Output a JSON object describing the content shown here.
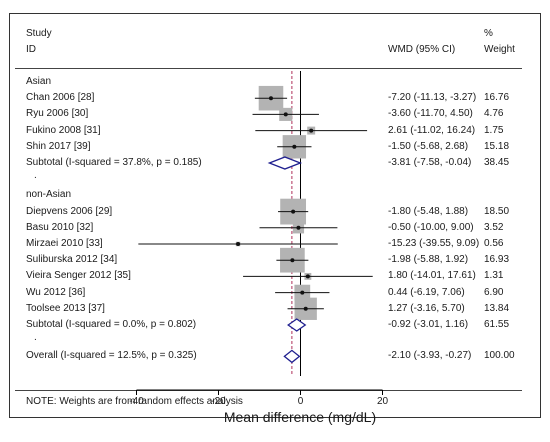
{
  "header": {
    "study": "Study",
    "id": "ID",
    "effect": "WMD (95% CI)",
    "pct": "%",
    "weight": "Weight"
  },
  "footnote": "NOTE: Weights are from random effects analysis",
  "chart_data": {
    "type": "forest",
    "xlabel": "Mean difference (mg/dL)",
    "xlim": [
      -50,
      25
    ],
    "xticks": [
      -40,
      -20,
      0,
      20
    ],
    "tick_labels": [
      "-40",
      "-20",
      "0",
      "20"
    ],
    "reference_line": 0,
    "overall_line": -2.1,
    "groups": [
      {
        "name": "Asian",
        "studies": [
          {
            "label": "Chan 2006 [28]",
            "est": -7.2,
            "lo": -11.13,
            "hi": -3.27,
            "ci_text": "-7.20 (-11.13, -3.27)",
            "weight": 16.76,
            "weight_text": "16.76"
          },
          {
            "label": "Ryu 2006 [30]",
            "est": -3.6,
            "lo": -11.7,
            "hi": 4.5,
            "ci_text": "-3.60 (-11.70, 4.50)",
            "weight": 4.76,
            "weight_text": "4.76"
          },
          {
            "label": "Fukino 2008 [31]",
            "est": 2.61,
            "lo": -11.02,
            "hi": 16.24,
            "ci_text": "2.61 (-11.02, 16.24)",
            "weight": 1.75,
            "weight_text": "1.75"
          },
          {
            "label": "Shin 2017 [39]",
            "est": -1.5,
            "lo": -5.68,
            "hi": 2.68,
            "ci_text": "-1.50 (-5.68, 2.68)",
            "weight": 15.18,
            "weight_text": "15.18"
          }
        ],
        "subtotal": {
          "label": "Subtotal  (I-squared = 37.8%, p = 0.185)",
          "est": -3.81,
          "lo": -7.58,
          "hi": -0.04,
          "ci_text": "-3.81 (-7.58, -0.04)",
          "weight_text": "38.45"
        }
      },
      {
        "name": "non-Asian",
        "studies": [
          {
            "label": "Diepvens 2006 [29]",
            "est": -1.8,
            "lo": -5.48,
            "hi": 1.88,
            "ci_text": "-1.80 (-5.48, 1.88)",
            "weight": 18.5,
            "weight_text": "18.50"
          },
          {
            "label": "Basu 2010 [32]",
            "est": -0.5,
            "lo": -10.0,
            "hi": 9.0,
            "ci_text": "-0.50 (-10.00, 9.00)",
            "weight": 3.52,
            "weight_text": "3.52"
          },
          {
            "label": "Mirzaei 2010 [33]",
            "est": -15.23,
            "lo": -39.55,
            "hi": 9.09,
            "ci_text": "-15.23 (-39.55, 9.09)",
            "weight": 0.56,
            "weight_text": "0.56"
          },
          {
            "label": "Suliburska 2012 [34]",
            "est": -1.98,
            "lo": -5.88,
            "hi": 1.92,
            "ci_text": "-1.98 (-5.88, 1.92)",
            "weight": 16.93,
            "weight_text": "16.93"
          },
          {
            "label": "Vieira Senger 2012 [35]",
            "est": 1.8,
            "lo": -14.01,
            "hi": 17.61,
            "ci_text": "1.80 (-14.01, 17.61)",
            "weight": 1.31,
            "weight_text": "1.31"
          },
          {
            "label": "Wu 2012 [36]",
            "est": 0.44,
            "lo": -6.19,
            "hi": 7.06,
            "ci_text": "0.44 (-6.19, 7.06)",
            "weight": 6.9,
            "weight_text": "6.90"
          },
          {
            "label": "Toolsee 2013 [37]",
            "est": 1.27,
            "lo": -3.16,
            "hi": 5.7,
            "ci_text": "1.27 (-3.16, 5.70)",
            "weight": 13.84,
            "weight_text": "13.84"
          }
        ],
        "subtotal": {
          "label": "Subtotal  (I-squared = 0.0%, p = 0.802)",
          "est": -0.92,
          "lo": -3.01,
          "hi": 1.16,
          "ci_text": "-0.92 (-3.01, 1.16)",
          "weight_text": "61.55"
        }
      }
    ],
    "separator": ".",
    "overall": {
      "label": "Overall  (I-squared = 12.5%, p = 0.325)",
      "est": -2.1,
      "lo": -3.93,
      "hi": -0.27,
      "ci_text": "-2.10 (-3.93, -0.27)",
      "weight_text": "100.00"
    },
    "colors": {
      "box": "#b3b3b3",
      "diamond": "#1f1f8f",
      "dashed_line": "#b0305a",
      "line": "#111111"
    }
  }
}
